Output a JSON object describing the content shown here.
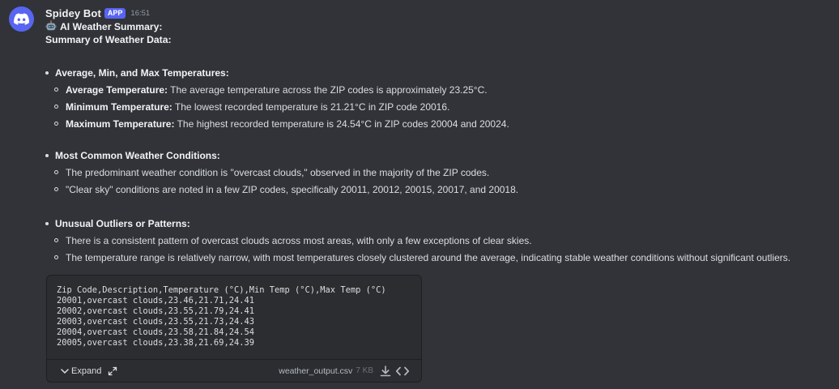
{
  "message": {
    "author": "Spidey Bot",
    "badge": "APP",
    "timestamp": "16:51",
    "title": "AI Weather Summary:",
    "subtitle": "Summary of Weather Data:",
    "sections": [
      {
        "heading": "Average, Min, and Max Temperatures:",
        "items": [
          {
            "label": "Average Temperature:",
            "text": " The average temperature across the ZIP codes is approximately 23.25°C."
          },
          {
            "label": "Minimum Temperature:",
            "text": " The lowest recorded temperature is 21.21°C in ZIP code 20016."
          },
          {
            "label": "Maximum Temperature:",
            "text": " The highest recorded temperature is 24.54°C in ZIP codes 20004 and 20024."
          }
        ]
      },
      {
        "heading": "Most Common Weather Conditions:",
        "items": [
          {
            "label": "",
            "text": "The predominant weather condition is \"overcast clouds,\" observed in the majority of the ZIP codes."
          },
          {
            "label": "",
            "text": "\"Clear sky\" conditions are noted in a few ZIP codes, specifically 20011, 20012, 20015, 20017, and 20018."
          }
        ]
      },
      {
        "heading": "Unusual Outliers or Patterns:",
        "items": [
          {
            "label": "",
            "text": "There is a consistent pattern of overcast clouds across most areas, with only a few exceptions of clear skies."
          },
          {
            "label": "",
            "text": "The temperature range is relatively narrow, with most temperatures closely clustered around the average, indicating stable weather conditions without significant outliers."
          }
        ]
      }
    ]
  },
  "attachment": {
    "lines": [
      "Zip Code,Description,Temperature (°C),Min Temp (°C),Max Temp (°C)",
      "20001,overcast clouds,23.46,21.71,24.41",
      "20002,overcast clouds,23.55,21.79,24.41",
      "20003,overcast clouds,23.55,21.73,24.43",
      "20004,overcast clouds,23.58,21.84,24.54",
      "20005,overcast clouds,23.38,21.69,24.39"
    ],
    "expand_label": "Expand",
    "filename": "weather_output.csv",
    "filesize": "7 KB"
  },
  "icons": {
    "avatar": "discord-logo-icon",
    "title": "robot-icon",
    "expand": "chevron-down-icon",
    "open": "expand-arrows-icon",
    "download": "download-icon",
    "code": "code-icon"
  },
  "colors": {
    "background": "#313338",
    "brand": "#5865f2",
    "attachment_bg": "#2b2d31"
  }
}
